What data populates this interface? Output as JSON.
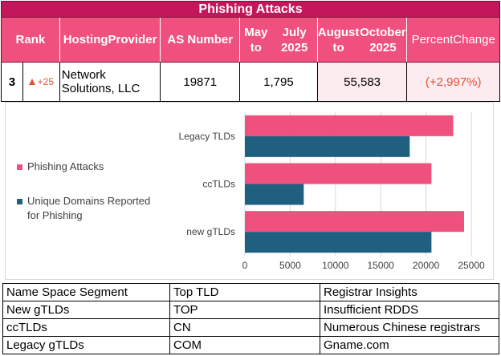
{
  "header": {
    "title": "Phishing Attacks"
  },
  "columns": [
    {
      "label": "Rank"
    },
    {
      "label": "Hosting Provider"
    },
    {
      "label": "AS Number"
    },
    {
      "label": "May to July 2025"
    },
    {
      "label": "August to October 2025"
    },
    {
      "label": "Percent Change"
    }
  ],
  "row": {
    "rank": "3",
    "rank_change": "+25",
    "provider": "Network Solutions, LLC",
    "as_number": "19871",
    "may_jul": "1,795",
    "aug_oct": "55,583",
    "percent_change": "(+2,997%)"
  },
  "colors": {
    "title_bg": "#c2185b",
    "header_bg": "#f0507e",
    "phishing_attacks": "#f0507e",
    "unique_domains": "#1f5f7f",
    "increase": "#e0533a"
  },
  "chart_data": {
    "type": "bar",
    "orientation": "horizontal",
    "categories": [
      "Legacy TLDs",
      "ccTLDs",
      "new gTLDs"
    ],
    "series": [
      {
        "name": "Phishing Attacks",
        "values": [
          23000,
          20600,
          24200
        ]
      },
      {
        "name": "Unique Domains Reported for Phishing",
        "values": [
          18200,
          6500,
          20600
        ]
      }
    ],
    "xlim": [
      0,
      25000
    ],
    "xticks": [
      "0",
      "5000",
      "10000",
      "15000",
      "20000",
      "25000"
    ],
    "grid": true,
    "legend": "left"
  },
  "insights_table": {
    "headers": [
      "Name Space Segment",
      "Top TLD",
      "Registrar Insights"
    ],
    "rows": [
      [
        "New gTLDs",
        "TOP",
        "Insufficient RDDS"
      ],
      [
        "ccTLDs",
        "CN",
        "Numerous Chinese registrars"
      ],
      [
        "Legacy gTLDs",
        "COM",
        "Gname.com"
      ]
    ]
  }
}
